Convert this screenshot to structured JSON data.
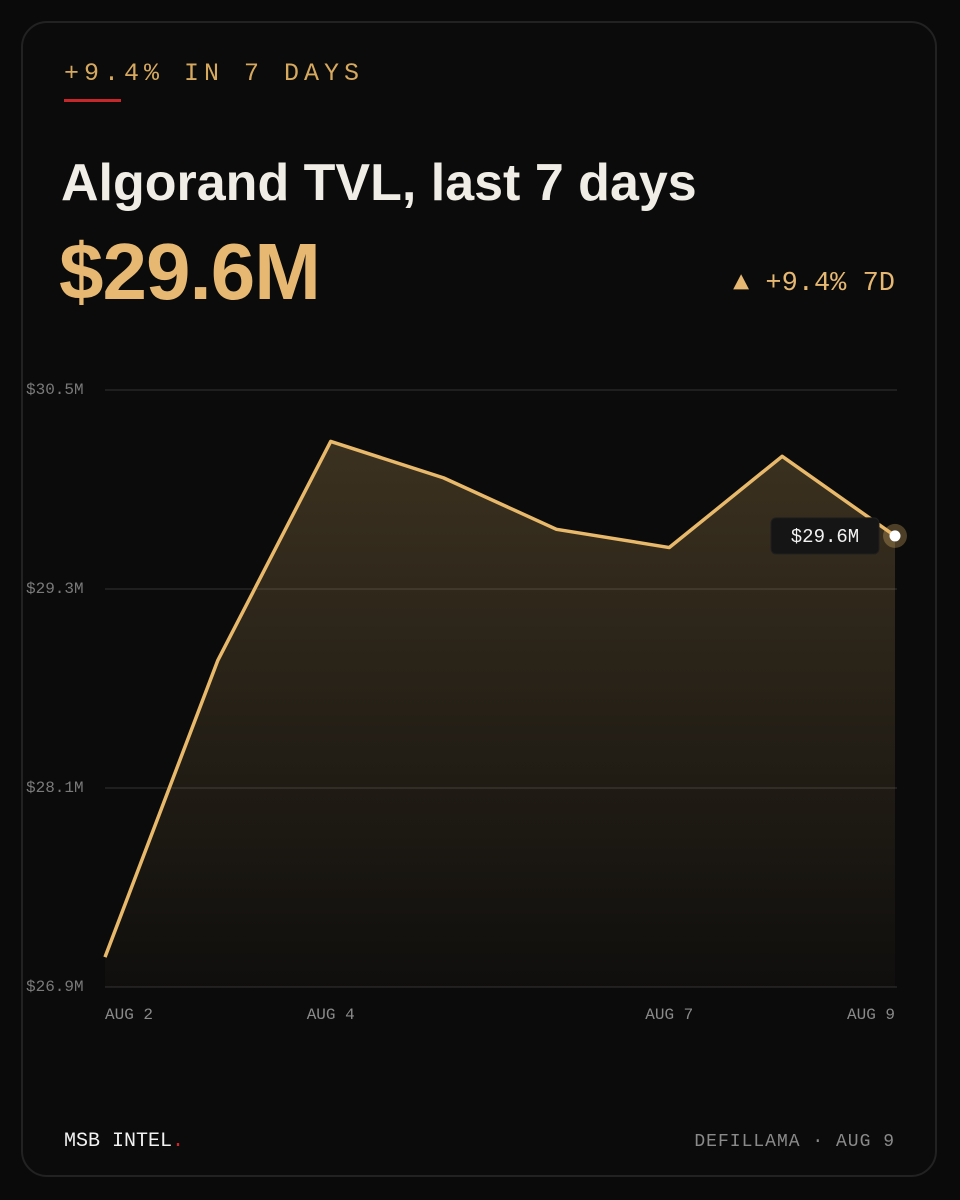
{
  "kicker": "+9.4% IN 7 DAYS",
  "title": "Algorand TVL, last 7 days",
  "headline": "$29.6M",
  "change": "▲ +9.4% 7D",
  "chart_data": {
    "type": "line",
    "categories": [
      "AUG 2",
      null,
      "AUG 4",
      null,
      null,
      "AUG 7",
      null,
      "AUG 9"
    ],
    "series": [
      {
        "name": "Algorand TVL",
        "color": "#e8b96a",
        "values": [
          27.08,
          28.87,
          30.19,
          29.97,
          29.66,
          29.55,
          30.1,
          29.62
        ]
      }
    ],
    "callout": "$29.6M",
    "ylim": [
      26.9,
      30.5
    ],
    "yticks": [
      {
        "value": 26.9,
        "label": "$26.9M"
      },
      {
        "value": 28.1,
        "label": "$28.1M"
      },
      {
        "value": 29.3,
        "label": "$29.3M"
      },
      {
        "value": 30.5,
        "label": "$30.5M"
      }
    ],
    "grid": true
  },
  "footer": {
    "brand": "MSB INTEL",
    "brand_dot": ".",
    "source": "DEFILLAMA · AUG 9"
  }
}
